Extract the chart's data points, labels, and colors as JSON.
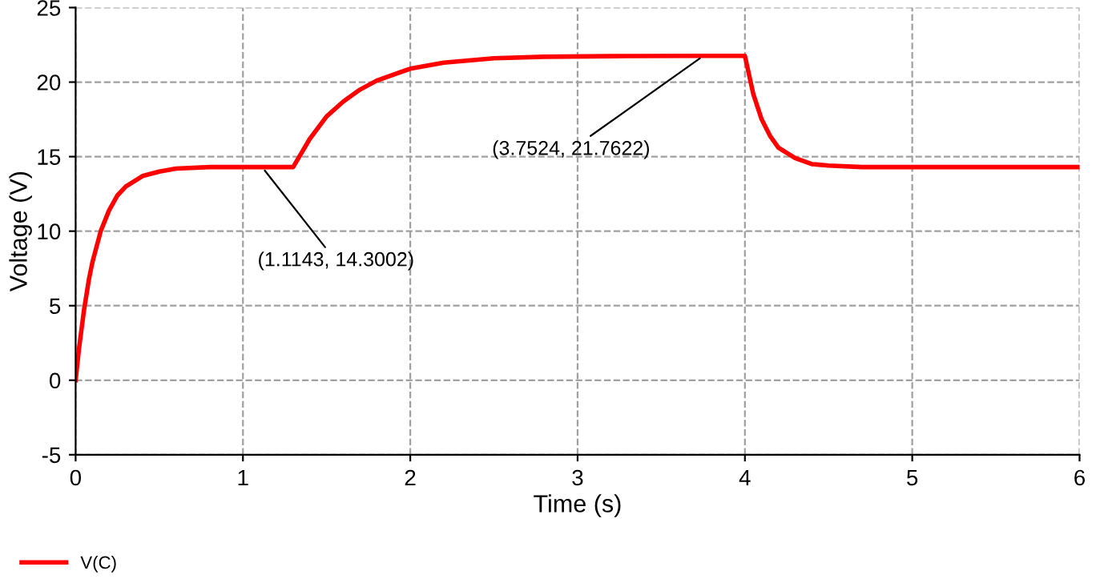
{
  "chart_data": {
    "type": "line",
    "xlabel": "Time (s)",
    "ylabel": "Voltage (V)",
    "xlim": [
      0,
      6
    ],
    "ylim": [
      -5,
      25
    ],
    "xticks": [
      0,
      1,
      2,
      3,
      4,
      5,
      6
    ],
    "yticks": [
      -5,
      0,
      5,
      10,
      15,
      20,
      25
    ],
    "grid": true,
    "legend": "bottom left",
    "marker": "none",
    "line_style": "solid",
    "series": [
      {
        "name": "V(C)",
        "color": "#ff0000",
        "x": [
          0,
          0.02,
          0.05,
          0.08,
          0.1,
          0.15,
          0.2,
          0.25,
          0.3,
          0.4,
          0.5,
          0.6,
          0.8,
          1.0,
          1.3,
          1.4,
          1.5,
          1.6,
          1.7,
          1.8,
          2.0,
          2.2,
          2.5,
          2.8,
          3.3,
          3.75,
          4.0,
          4.05,
          4.1,
          4.15,
          4.2,
          4.3,
          4.4,
          4.5,
          4.7,
          5.0,
          6.0
        ],
        "values": [
          0,
          2.1,
          4.7,
          6.8,
          7.9,
          10.0,
          11.4,
          12.4,
          13.0,
          13.7,
          14.0,
          14.2,
          14.3,
          14.3,
          14.3,
          16.2,
          17.7,
          18.7,
          19.5,
          20.1,
          20.9,
          21.3,
          21.6,
          21.7,
          21.75,
          21.76,
          21.76,
          19.2,
          17.5,
          16.4,
          15.6,
          14.9,
          14.5,
          14.4,
          14.3,
          14.3,
          14.3
        ]
      }
    ],
    "annotations": [
      {
        "text": "(1.1143, 14.3002)",
        "x": 1.1143,
        "y": 14.3002
      },
      {
        "text": "(3.7524, 21.7622)",
        "x": 3.7524,
        "y": 21.7622
      }
    ]
  }
}
